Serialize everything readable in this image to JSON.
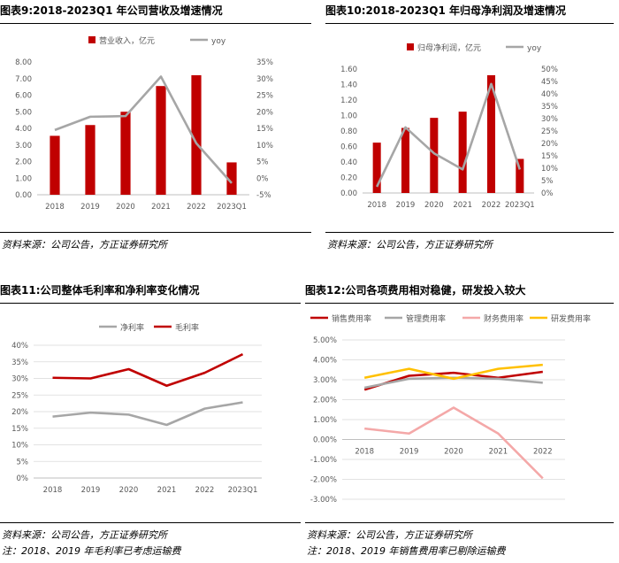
{
  "colors": {
    "red": "#C00000",
    "gray": "#A6A6A6",
    "pink": "#F4A8A8",
    "gold": "#FFC000",
    "grid": "#D9D9D9"
  },
  "panels": [
    {
      "title": "图表9:2018-2023Q1 年公司营收及增速情况",
      "source": "资料来源：公司公告，方正证券研究所"
    },
    {
      "title": "图表10:2018-2023Q1 年归母净利润及增速情况",
      "source": "资料来源：公司公告，方正证券研究所"
    },
    {
      "title": "图表11:公司整体毛利率和净利率变化情况",
      "source": "资料来源：公司公告，方正证券研究所",
      "note": "注：2018、2019 年毛利率已考虑运输费"
    },
    {
      "title": "图表12:公司各项费用相对稳健，研发投入较大",
      "source": "资料来源：公司公告，方正证券研究所",
      "note": "注：2018、2019 年销售费用率已剔除运输费"
    }
  ],
  "chart_data": [
    {
      "type": "bar",
      "categories": [
        "2018",
        "2019",
        "2020",
        "2021",
        "2022",
        "2023Q1"
      ],
      "series": [
        {
          "name": "营业收入，亿元",
          "type": "bar",
          "axis": "left",
          "color": "#C00000",
          "values": [
            3.55,
            4.2,
            5.0,
            6.55,
            7.2,
            1.95
          ]
        },
        {
          "name": "yoy",
          "type": "line",
          "axis": "right",
          "color": "#A6A6A6",
          "values": [
            14.5,
            18.5,
            18.7,
            30.6,
            10.5,
            -1.5
          ]
        }
      ],
      "ylim": [
        0,
        8
      ],
      "yticks": [
        "0.00",
        "1.00",
        "2.00",
        "3.00",
        "4.00",
        "5.00",
        "6.00",
        "7.00",
        "8.00"
      ],
      "y2lim": [
        -5,
        35
      ],
      "y2ticks": [
        "-5%",
        "0%",
        "5%",
        "10%",
        "15%",
        "20%",
        "25%",
        "30%",
        "35%"
      ],
      "legend": "top"
    },
    {
      "type": "bar",
      "categories": [
        "2018",
        "2019",
        "2020",
        "2021",
        "2022",
        "2023Q1"
      ],
      "series": [
        {
          "name": "归母净利润，亿元",
          "type": "bar",
          "axis": "left",
          "color": "#C00000",
          "values": [
            0.65,
            0.84,
            0.97,
            1.05,
            1.52,
            0.44
          ]
        },
        {
          "name": "yoy",
          "type": "line",
          "axis": "right",
          "color": "#A6A6A6",
          "values": [
            2.5,
            26.5,
            16.0,
            9.5,
            44.0,
            9.5
          ]
        }
      ],
      "ylim": [
        0,
        1.6
      ],
      "yticks": [
        "0.00",
        "0.20",
        "0.40",
        "0.60",
        "0.80",
        "1.00",
        "1.20",
        "1.40",
        "1.60"
      ],
      "y2lim": [
        0,
        50
      ],
      "y2ticks": [
        "0%",
        "5%",
        "10%",
        "15%",
        "20%",
        "25%",
        "30%",
        "35%",
        "40%",
        "45%",
        "50%"
      ],
      "legend": "top"
    },
    {
      "type": "line",
      "categories": [
        "2018",
        "2019",
        "2020",
        "2021",
        "2022",
        "2023Q1"
      ],
      "series": [
        {
          "name": "净利率",
          "color": "#A6A6A6",
          "values": [
            18.5,
            19.7,
            19.1,
            16.0,
            20.9,
            22.8
          ]
        },
        {
          "name": "毛利率",
          "color": "#C00000",
          "values": [
            30.2,
            30.0,
            32.8,
            27.8,
            31.7,
            37.3
          ]
        }
      ],
      "ylim": [
        0,
        40
      ],
      "yticks": [
        "0%",
        "5%",
        "10%",
        "15%",
        "20%",
        "25%",
        "30%",
        "35%",
        "40%"
      ],
      "legend": "top"
    },
    {
      "type": "line",
      "categories": [
        "2018",
        "2019",
        "2020",
        "2021",
        "2022"
      ],
      "series": [
        {
          "name": "销售费用率",
          "color": "#C00000",
          "values": [
            2.5,
            3.2,
            3.35,
            3.1,
            3.4
          ]
        },
        {
          "name": "管理费用率",
          "color": "#A6A6A6",
          "values": [
            2.6,
            3.05,
            3.1,
            3.05,
            2.85
          ]
        },
        {
          "name": "财务费用率",
          "color": "#F4A8A8",
          "values": [
            0.55,
            0.3,
            1.6,
            0.3,
            -1.95
          ]
        },
        {
          "name": "研发费用率",
          "color": "#FFC000",
          "values": [
            3.1,
            3.55,
            3.05,
            3.55,
            3.75
          ]
        }
      ],
      "ylim": [
        -3,
        5
      ],
      "yticks": [
        "-3.00%",
        "-2.00%",
        "-1.00%",
        "0.00%",
        "1.00%",
        "2.00%",
        "3.00%",
        "4.00%",
        "5.00%"
      ],
      "legend": "top"
    }
  ]
}
